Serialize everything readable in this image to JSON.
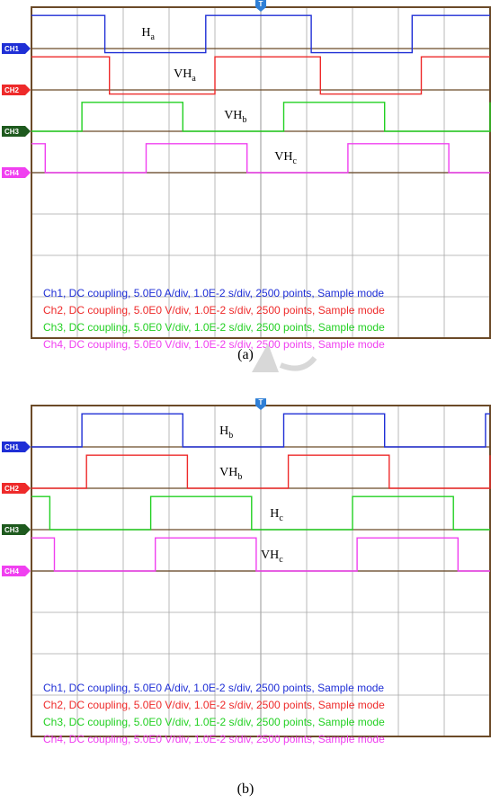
{
  "captions": {
    "a": "(a)",
    "b": "(b)"
  },
  "colors": {
    "ch1": "#1f2fd6",
    "ch2": "#ee2a2a",
    "ch3": "#22d022",
    "ch4": "#f040f0",
    "ch3_marker": "#1e5a1e",
    "grid": "#a8a8a8",
    "frame": "#6b4a28",
    "trigger": "#2f7fd6"
  },
  "chart_data": [
    {
      "id": "a",
      "type": "line",
      "xlim": [
        0,
        10
      ],
      "ylim": [
        -4,
        4
      ],
      "grid": true,
      "trigger_marker": "T",
      "channels": [
        {
          "id": "ch1",
          "label": "CH1",
          "zero": 3,
          "high": 3.8,
          "low": 2.9,
          "transitions": [
            1.6,
            3.8,
            6.1,
            8.3
          ],
          "start_high": true
        },
        {
          "id": "ch2",
          "label": "CH2",
          "zero": 2,
          "high": 2.8,
          "low": 1.9,
          "transitions": [
            1.7,
            4.0,
            6.3,
            8.5
          ],
          "start_high": true
        },
        {
          "id": "ch3",
          "label": "CH3",
          "zero": 1,
          "high": 1.7,
          "low": 1.0,
          "transitions": [
            1.1,
            3.3,
            5.5,
            7.7,
            10.0
          ],
          "start_high": false
        },
        {
          "id": "ch4",
          "label": "CH4",
          "zero": 0,
          "high": 0.7,
          "low": 0.0,
          "transitions": [
            0.3,
            2.5,
            4.7,
            6.9,
            9.1
          ],
          "start_high": true
        }
      ],
      "annotations": [
        {
          "base": "H",
          "sub": "a",
          "x": 2.4,
          "y": 3.3
        },
        {
          "base": "VH",
          "sub": "a",
          "x": 3.1,
          "y": 2.3
        },
        {
          "base": "VH",
          "sub": "b",
          "x": 4.2,
          "y": 1.3
        },
        {
          "base": "VH",
          "sub": "c",
          "x": 5.3,
          "y": 0.3
        }
      ],
      "legend": [
        {
          "channel": "ch1",
          "text": "Ch1, DC coupling, 5.0E0 A/div, 1.0E-2 s/div, 2500 points, Sample mode"
        },
        {
          "channel": "ch2",
          "text": "Ch2, DC coupling, 5.0E0 V/div, 1.0E-2 s/div, 2500 points, Sample mode"
        },
        {
          "channel": "ch3",
          "text": "Ch3, DC coupling, 5.0E0 V/div, 1.0E-2 s/div, 2500 points, Sample mode"
        },
        {
          "channel": "ch4",
          "text": "Ch4, DC coupling, 5.0E0 V/div, 1.0E-2 s/div, 2500 points, Sample mode"
        }
      ]
    },
    {
      "id": "b",
      "type": "line",
      "xlim": [
        0,
        10
      ],
      "ylim": [
        -4,
        4
      ],
      "grid": true,
      "trigger_marker": "T",
      "channels": [
        {
          "id": "ch1",
          "label": "CH1",
          "zero": 3,
          "high": 3.8,
          "low": 3.0,
          "transitions": [
            1.1,
            3.3,
            5.5,
            7.7,
            9.9
          ],
          "start_high": false
        },
        {
          "id": "ch2",
          "label": "CH2",
          "zero": 2,
          "high": 2.8,
          "low": 2.0,
          "transitions": [
            1.2,
            3.4,
            5.6,
            7.8,
            10.0
          ],
          "start_high": false
        },
        {
          "id": "ch3",
          "label": "CH3",
          "zero": 1,
          "high": 1.8,
          "low": 1.0,
          "transitions": [
            0.4,
            2.6,
            4.8,
            7.0,
            9.2
          ],
          "start_high": true
        },
        {
          "id": "ch4",
          "label": "CH4",
          "zero": 0,
          "high": 0.8,
          "low": 0.0,
          "transitions": [
            0.5,
            2.7,
            4.9,
            7.1,
            9.3
          ],
          "start_high": true
        }
      ],
      "annotations": [
        {
          "base": "H",
          "sub": "b",
          "x": 4.1,
          "y": 3.3
        },
        {
          "base": "VH",
          "sub": "b",
          "x": 4.1,
          "y": 2.3
        },
        {
          "base": "H",
          "sub": "c",
          "x": 5.2,
          "y": 1.3
        },
        {
          "base": "VH",
          "sub": "c",
          "x": 5.0,
          "y": 0.3
        }
      ],
      "legend": [
        {
          "channel": "ch1",
          "text": "Ch1, DC coupling, 5.0E0 A/div, 1.0E-2 s/div, 2500 points, Sample mode"
        },
        {
          "channel": "ch2",
          "text": "Ch2, DC coupling, 5.0E0 V/div, 1.0E-2 s/div, 2500 points, Sample mode"
        },
        {
          "channel": "ch3",
          "text": "Ch3, DC coupling, 5.0E0 V/div, 1.0E-2 s/div, 2500 points, Sample mode"
        },
        {
          "channel": "ch4",
          "text": "Ch4, DC coupling, 5.0E0 V/div, 1.0E-2 s/div, 2500 points, Sample mode"
        }
      ]
    }
  ]
}
